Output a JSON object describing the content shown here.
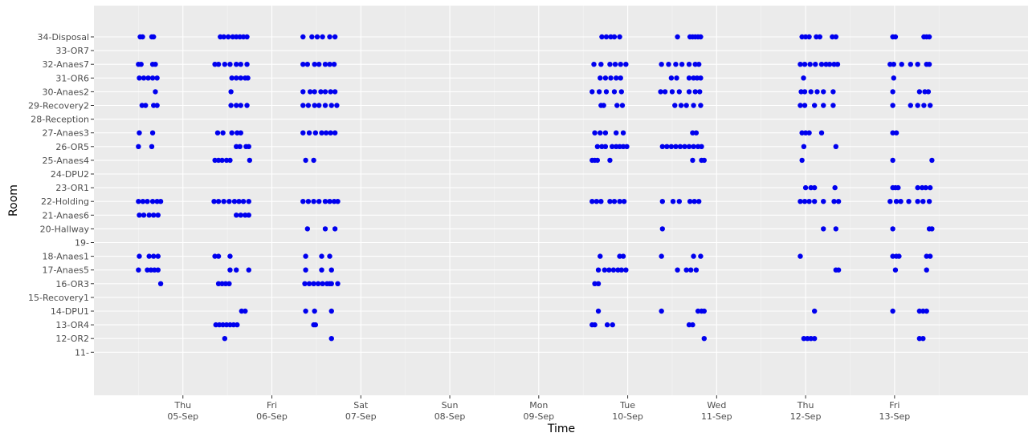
{
  "chart_data": {
    "type": "scatter",
    "xlabel": "Time",
    "ylabel": "Room",
    "grid": true,
    "xlim": [
      "2019-09-04T00:00",
      "2019-09-14T12:00"
    ],
    "x_ticks": [
      {
        "value": "2019-09-05",
        "line1": "Thu",
        "line2": "05-Sep"
      },
      {
        "value": "2019-09-06",
        "line1": "Fri",
        "line2": "06-Sep"
      },
      {
        "value": "2019-09-07",
        "line1": "Sat",
        "line2": "07-Sep"
      },
      {
        "value": "2019-09-08",
        "line1": "Sun",
        "line2": "08-Sep"
      },
      {
        "value": "2019-09-09",
        "line1": "Mon",
        "line2": "09-Sep"
      },
      {
        "value": "2019-09-10",
        "line1": "Tue",
        "line2": "10-Sep"
      },
      {
        "value": "2019-09-11",
        "line1": "Wed",
        "line2": "11-Sep"
      },
      {
        "value": "2019-09-12",
        "line1": "Thu",
        "line2": "12-Sep"
      },
      {
        "value": "2019-09-13",
        "line1": "Fri",
        "line2": "13-Sep"
      }
    ],
    "rooms": [
      "34-Disposal",
      "33-OR7",
      "32-Anaes7",
      "31-OR6",
      "30-Anaes2",
      "29-Recovery2",
      "28-Reception",
      "27-Anaes3",
      "26-OR5",
      "25-Anaes4",
      "24-DPU2",
      "23-OR1",
      "22-Holding",
      "21-Anaes6",
      "20-Hallway",
      "19-",
      "18-Anaes1",
      "17-Anaes5",
      "16-OR3",
      "15-Recovery1",
      "14-DPU1",
      "13-OR4",
      "12-OR2",
      "11-"
    ],
    "point_color": "#0000ee",
    "series": [
      {
        "room": "34-Disposal",
        "x": [
          "2019-09-04T12:28",
          "2019-09-04T13:07",
          "2019-09-04T15:36",
          "2019-09-04T16:05",
          "2019-09-05T10:05",
          "2019-09-05T11:02",
          "2019-09-05T12:14",
          "2019-09-05T13:26",
          "2019-09-05T14:24",
          "2019-09-05T15:22",
          "2019-09-05T16:19",
          "2019-09-05T17:17",
          "2019-09-06T08:24",
          "2019-09-06T10:48",
          "2019-09-06T12:14",
          "2019-09-06T13:40",
          "2019-09-06T15:36",
          "2019-09-06T17:02",
          "2019-09-09T17:02",
          "2019-09-09T18:14",
          "2019-09-09T19:26",
          "2019-09-09T20:24",
          "2019-09-09T21:50",
          "2019-09-10T13:26",
          "2019-09-10T16:48",
          "2019-09-10T17:31",
          "2019-09-10T18:14",
          "2019-09-10T18:58",
          "2019-09-10T19:41",
          "2019-09-11T23:02",
          "2019-09-12T00:00",
          "2019-09-12T00:58",
          "2019-09-12T02:53",
          "2019-09-12T03:50",
          "2019-09-12T07:12",
          "2019-09-12T08:10",
          "2019-09-12T23:31",
          "2019-09-13T00:14",
          "2019-09-13T07:55",
          "2019-09-13T08:38",
          "2019-09-13T09:22"
        ]
      },
      {
        "room": "32-Anaes7",
        "x": [
          "2019-09-04T12:00",
          "2019-09-04T12:43",
          "2019-09-04T15:50",
          "2019-09-04T16:34",
          "2019-09-05T08:38",
          "2019-09-05T09:36",
          "2019-09-05T11:17",
          "2019-09-05T12:43",
          "2019-09-05T14:24",
          "2019-09-05T15:36",
          "2019-09-05T17:17",
          "2019-09-06T08:24",
          "2019-09-06T09:36",
          "2019-09-06T11:31",
          "2019-09-06T12:43",
          "2019-09-06T14:24",
          "2019-09-06T15:36",
          "2019-09-06T16:48",
          "2019-09-09T14:53",
          "2019-09-09T16:48",
          "2019-09-09T19:12",
          "2019-09-09T20:38",
          "2019-09-09T22:05",
          "2019-09-09T23:31",
          "2019-09-10T09:07",
          "2019-09-10T11:02",
          "2019-09-10T12:58",
          "2019-09-10T14:38",
          "2019-09-10T16:34",
          "2019-09-10T18:14",
          "2019-09-10T19:12",
          "2019-09-11T22:34",
          "2019-09-11T23:46",
          "2019-09-12T01:12",
          "2019-09-12T02:38",
          "2019-09-12T04:19",
          "2019-09-12T05:31",
          "2019-09-12T06:29",
          "2019-09-12T07:41",
          "2019-09-12T08:38",
          "2019-09-12T22:48",
          "2019-09-12T23:46",
          "2019-09-13T01:55",
          "2019-09-13T04:19",
          "2019-09-13T06:14",
          "2019-09-13T08:38",
          "2019-09-13T09:22"
        ]
      },
      {
        "room": "31-OR6",
        "x": [
          "2019-09-04T12:14",
          "2019-09-04T13:26",
          "2019-09-04T14:38",
          "2019-09-04T15:50",
          "2019-09-04T17:02",
          "2019-09-05T13:12",
          "2019-09-05T14:24",
          "2019-09-05T15:36",
          "2019-09-05T16:48",
          "2019-09-05T17:31",
          "2019-09-09T16:34",
          "2019-09-09T18:00",
          "2019-09-09T19:26",
          "2019-09-09T20:53",
          "2019-09-09T22:05",
          "2019-09-10T11:46",
          "2019-09-10T13:12",
          "2019-09-10T16:34",
          "2019-09-10T17:46",
          "2019-09-10T18:43",
          "2019-09-10T19:41",
          "2019-09-11T23:26",
          "2019-09-12T23:46"
        ]
      },
      {
        "room": "30-Anaes2",
        "x": [
          "2019-09-04T16:34",
          "2019-09-05T12:58",
          "2019-09-06T08:24",
          "2019-09-06T10:19",
          "2019-09-06T11:31",
          "2019-09-06T13:12",
          "2019-09-06T14:24",
          "2019-09-06T15:50",
          "2019-09-06T17:02",
          "2019-09-09T14:24",
          "2019-09-09T16:19",
          "2019-09-09T18:14",
          "2019-09-09T20:24",
          "2019-09-09T22:19",
          "2019-09-10T08:53",
          "2019-09-10T10:05",
          "2019-09-10T12:00",
          "2019-09-10T13:55",
          "2019-09-10T16:34",
          "2019-09-10T18:14",
          "2019-09-10T19:26",
          "2019-09-11T22:48",
          "2019-09-11T23:46",
          "2019-09-12T01:26",
          "2019-09-12T03:07",
          "2019-09-12T04:48",
          "2019-09-12T07:26",
          "2019-09-12T23:31",
          "2019-09-13T06:43",
          "2019-09-13T08:10",
          "2019-09-13T09:07"
        ]
      },
      {
        "room": "29-Recovery2",
        "x": [
          "2019-09-04T12:58",
          "2019-09-04T13:55",
          "2019-09-04T16:05",
          "2019-09-04T17:02",
          "2019-09-05T12:58",
          "2019-09-05T14:24",
          "2019-09-05T15:36",
          "2019-09-05T17:17",
          "2019-09-06T08:24",
          "2019-09-06T09:50",
          "2019-09-06T11:31",
          "2019-09-06T12:43",
          "2019-09-06T14:24",
          "2019-09-06T16:05",
          "2019-09-06T17:31",
          "2019-09-09T16:48",
          "2019-09-09T17:31",
          "2019-09-09T21:07",
          "2019-09-09T22:34",
          "2019-09-10T12:43",
          "2019-09-10T14:24",
          "2019-09-10T15:50",
          "2019-09-10T17:46",
          "2019-09-10T19:41",
          "2019-09-11T22:34",
          "2019-09-11T23:46",
          "2019-09-12T02:24",
          "2019-09-12T04:48",
          "2019-09-12T07:26",
          "2019-09-12T23:31",
          "2019-09-13T04:19",
          "2019-09-13T06:14",
          "2019-09-13T07:55",
          "2019-09-13T09:36"
        ]
      },
      {
        "room": "27-Anaes3",
        "x": [
          "2019-09-04T12:14",
          "2019-09-04T15:50",
          "2019-09-05T09:22",
          "2019-09-05T10:48",
          "2019-09-05T13:12",
          "2019-09-05T14:38",
          "2019-09-05T15:36",
          "2019-09-06T08:24",
          "2019-09-06T10:05",
          "2019-09-06T11:46",
          "2019-09-06T13:26",
          "2019-09-06T14:38",
          "2019-09-06T15:50",
          "2019-09-06T17:02",
          "2019-09-09T15:07",
          "2019-09-09T16:34",
          "2019-09-09T18:00",
          "2019-09-09T20:53",
          "2019-09-09T22:48",
          "2019-09-10T17:31",
          "2019-09-10T18:29",
          "2019-09-11T23:02",
          "2019-09-12T00:00",
          "2019-09-12T00:58",
          "2019-09-12T04:19",
          "2019-09-12T23:31",
          "2019-09-13T00:29"
        ]
      },
      {
        "room": "26-OR5",
        "x": [
          "2019-09-04T12:00",
          "2019-09-04T15:36",
          "2019-09-05T14:24",
          "2019-09-05T15:22",
          "2019-09-05T17:02",
          "2019-09-05T17:46",
          "2019-09-09T15:50",
          "2019-09-09T17:02",
          "2019-09-09T18:00",
          "2019-09-09T19:48",
          "2019-09-09T20:53",
          "2019-09-09T21:50",
          "2019-09-09T22:48",
          "2019-09-09T23:46",
          "2019-09-10T09:22",
          "2019-09-10T10:34",
          "2019-09-10T11:46",
          "2019-09-10T12:58",
          "2019-09-10T14:10",
          "2019-09-10T15:22",
          "2019-09-10T16:34",
          "2019-09-10T17:46",
          "2019-09-10T18:58",
          "2019-09-10T19:55",
          "2019-09-11T23:31",
          "2019-09-12T08:10"
        ]
      },
      {
        "room": "25-Anaes4",
        "x": [
          "2019-09-05T08:38",
          "2019-09-05T09:36",
          "2019-09-05T10:34",
          "2019-09-05T11:46",
          "2019-09-05T12:43",
          "2019-09-05T18:00",
          "2019-09-06T09:07",
          "2019-09-06T11:17",
          "2019-09-09T14:24",
          "2019-09-09T15:07",
          "2019-09-09T15:50",
          "2019-09-09T19:12",
          "2019-09-10T17:31",
          "2019-09-10T19:55",
          "2019-09-10T20:38",
          "2019-09-11T23:02",
          "2019-09-12T23:31",
          "2019-09-13T10:05"
        ]
      },
      {
        "room": "23-OR1",
        "x": [
          "2019-09-12T00:00",
          "2019-09-12T01:26",
          "2019-09-12T02:24",
          "2019-09-12T07:55",
          "2019-09-12T23:31",
          "2019-09-13T00:14",
          "2019-09-13T00:58",
          "2019-09-13T06:14",
          "2019-09-13T07:26",
          "2019-09-13T08:24",
          "2019-09-13T09:36"
        ]
      },
      {
        "room": "22-Holding",
        "x": [
          "2019-09-04T12:00",
          "2019-09-04T13:12",
          "2019-09-04T14:24",
          "2019-09-04T15:50",
          "2019-09-04T17:02",
          "2019-09-04T18:00",
          "2019-09-05T08:24",
          "2019-09-05T09:36",
          "2019-09-05T11:02",
          "2019-09-05T12:29",
          "2019-09-05T13:55",
          "2019-09-05T15:07",
          "2019-09-05T16:19",
          "2019-09-05T17:46",
          "2019-09-06T08:24",
          "2019-09-06T09:50",
          "2019-09-06T11:17",
          "2019-09-06T12:43",
          "2019-09-06T14:24",
          "2019-09-06T15:36",
          "2019-09-06T16:48",
          "2019-09-06T17:46",
          "2019-09-09T14:24",
          "2019-09-09T15:36",
          "2019-09-09T16:48",
          "2019-09-09T19:12",
          "2019-09-09T20:24",
          "2019-09-09T21:50",
          "2019-09-09T23:02",
          "2019-09-10T09:22",
          "2019-09-10T12:14",
          "2019-09-10T13:55",
          "2019-09-10T16:48",
          "2019-09-10T18:00",
          "2019-09-10T19:12",
          "2019-09-11T22:34",
          "2019-09-11T23:46",
          "2019-09-12T00:58",
          "2019-09-12T02:24",
          "2019-09-12T04:48",
          "2019-09-12T07:41",
          "2019-09-12T08:53",
          "2019-09-12T22:48",
          "2019-09-13T00:29",
          "2019-09-13T01:40",
          "2019-09-13T03:50",
          "2019-09-13T06:14",
          "2019-09-13T07:41",
          "2019-09-13T09:22"
        ]
      },
      {
        "room": "21-Anaes6",
        "x": [
          "2019-09-04T12:14",
          "2019-09-04T13:26",
          "2019-09-04T14:53",
          "2019-09-04T16:05",
          "2019-09-04T17:17",
          "2019-09-05T14:24",
          "2019-09-05T15:36",
          "2019-09-05T16:48",
          "2019-09-05T17:46"
        ]
      },
      {
        "room": "20-Hallway",
        "x": [
          "2019-09-06T09:36",
          "2019-09-06T14:24",
          "2019-09-06T17:02",
          "2019-09-10T09:22",
          "2019-09-12T23:31",
          "2019-09-12T04:48",
          "2019-09-12T08:10",
          "2019-09-13T09:22",
          "2019-09-13T10:05"
        ]
      },
      {
        "room": "18-Anaes1",
        "x": [
          "2019-09-04T12:14",
          "2019-09-04T14:53",
          "2019-09-04T16:05",
          "2019-09-04T17:17",
          "2019-09-05T08:38",
          "2019-09-05T09:36",
          "2019-09-05T12:43",
          "2019-09-06T09:07",
          "2019-09-06T13:26",
          "2019-09-06T15:36",
          "2019-09-09T16:34",
          "2019-09-09T21:50",
          "2019-09-09T22:48",
          "2019-09-10T09:07",
          "2019-09-10T17:46",
          "2019-09-10T19:41",
          "2019-09-11T22:34",
          "2019-09-12T23:31",
          "2019-09-13T00:29",
          "2019-09-13T01:12",
          "2019-09-13T08:38",
          "2019-09-13T09:36"
        ]
      },
      {
        "room": "17-Anaes5",
        "x": [
          "2019-09-04T12:00",
          "2019-09-04T14:24",
          "2019-09-04T15:22",
          "2019-09-04T16:19",
          "2019-09-04T17:17",
          "2019-09-05T12:43",
          "2019-09-05T14:24",
          "2019-09-05T17:46",
          "2019-09-06T09:07",
          "2019-09-06T13:26",
          "2019-09-06T16:05",
          "2019-09-09T16:05",
          "2019-09-09T17:46",
          "2019-09-09T18:58",
          "2019-09-09T20:10",
          "2019-09-09T21:22",
          "2019-09-09T22:19",
          "2019-09-09T23:31",
          "2019-09-10T13:26",
          "2019-09-10T15:50",
          "2019-09-10T17:02",
          "2019-09-10T18:29",
          "2019-09-12T08:10",
          "2019-09-12T08:53",
          "2019-09-13T00:14",
          "2019-09-13T08:38"
        ]
      },
      {
        "room": "16-OR3",
        "x": [
          "2019-09-04T18:00",
          "2019-09-05T09:36",
          "2019-09-05T10:34",
          "2019-09-05T11:31",
          "2019-09-05T12:29",
          "2019-09-06T08:53",
          "2019-09-06T10:05",
          "2019-09-06T11:17",
          "2019-09-06T12:29",
          "2019-09-06T13:40",
          "2019-09-06T14:53",
          "2019-09-06T15:36",
          "2019-09-06T16:05",
          "2019-09-06T17:46",
          "2019-09-09T15:07",
          "2019-09-09T16:05"
        ]
      },
      {
        "room": "14-DPU1",
        "x": [
          "2019-09-05T15:50",
          "2019-09-05T16:48",
          "2019-09-06T09:07",
          "2019-09-06T11:31",
          "2019-09-06T16:05",
          "2019-09-09T16:05",
          "2019-09-10T09:07",
          "2019-09-10T18:58",
          "2019-09-10T19:55",
          "2019-09-10T20:38",
          "2019-09-12T02:24",
          "2019-09-12T23:31",
          "2019-09-13T06:43",
          "2019-09-13T07:41",
          "2019-09-13T08:38"
        ]
      },
      {
        "room": "13-OR4",
        "x": [
          "2019-09-05T08:53",
          "2019-09-05T09:50",
          "2019-09-05T10:48",
          "2019-09-05T11:46",
          "2019-09-05T12:43",
          "2019-09-05T13:40",
          "2019-09-05T14:38",
          "2019-09-06T11:17",
          "2019-09-06T11:46",
          "2019-09-09T14:24",
          "2019-09-09T15:07",
          "2019-09-09T18:29",
          "2019-09-09T19:55",
          "2019-09-10T16:34",
          "2019-09-10T17:31"
        ]
      },
      {
        "room": "12-OR2",
        "x": [
          "2019-09-05T11:17",
          "2019-09-06T16:05",
          "2019-09-10T20:38",
          "2019-09-11T23:31",
          "2019-09-12T00:29",
          "2019-09-12T01:26",
          "2019-09-12T02:24",
          "2019-09-13T06:43",
          "2019-09-13T07:41"
        ]
      }
    ]
  }
}
